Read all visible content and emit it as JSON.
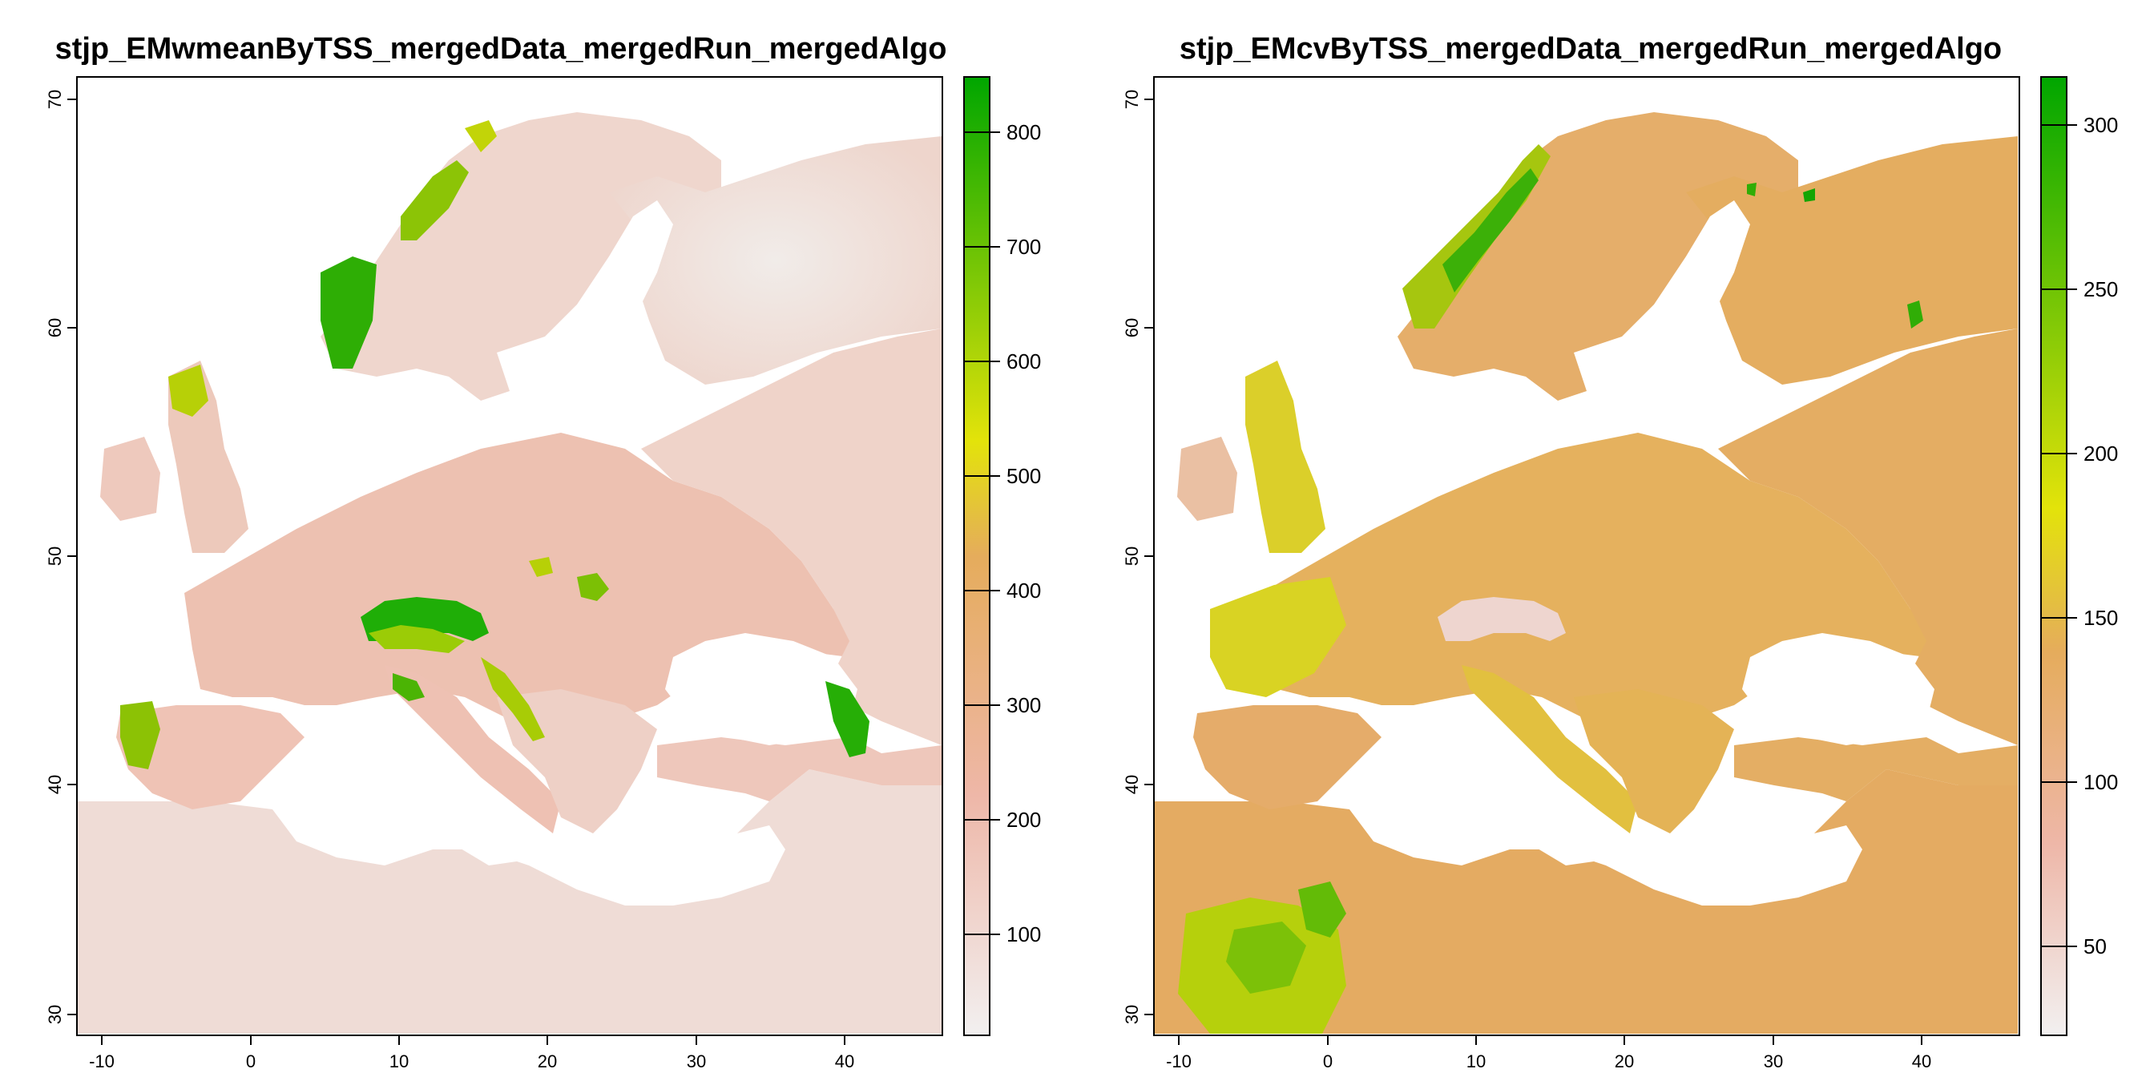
{
  "maps": [
    {
      "title": "stjp_EMwmeanByTSS_mergedData_mergedRun_mergedAlgo",
      "x_ticks": [
        "-10",
        "0",
        "10",
        "20",
        "30",
        "40"
      ],
      "y_ticks": [
        "30",
        "40",
        "50",
        "60",
        "70"
      ],
      "colorbar_ticks": [
        "100",
        "200",
        "300",
        "400",
        "500",
        "600",
        "700",
        "800"
      ],
      "colors": {
        "low": "#f3f0ef",
        "mid_low": "#eeb7a8",
        "mid": "#e5ac5c",
        "mid_high": "#e3e30a",
        "high": "#00a600"
      }
    },
    {
      "title": "stjp_EMcvByTSS_mergedData_mergedRun_mergedAlgo",
      "x_ticks": [
        "-10",
        "0",
        "10",
        "20",
        "30",
        "40"
      ],
      "y_ticks": [
        "30",
        "40",
        "50",
        "60",
        "70"
      ],
      "colorbar_ticks": [
        "50",
        "100",
        "150",
        "200",
        "250",
        "300"
      ],
      "colors": {
        "low": "#f3f0ef",
        "mid_low": "#eeb7a8",
        "mid": "#e5ac5c",
        "mid_high": "#e3e30a",
        "high": "#00a600"
      }
    }
  ]
}
